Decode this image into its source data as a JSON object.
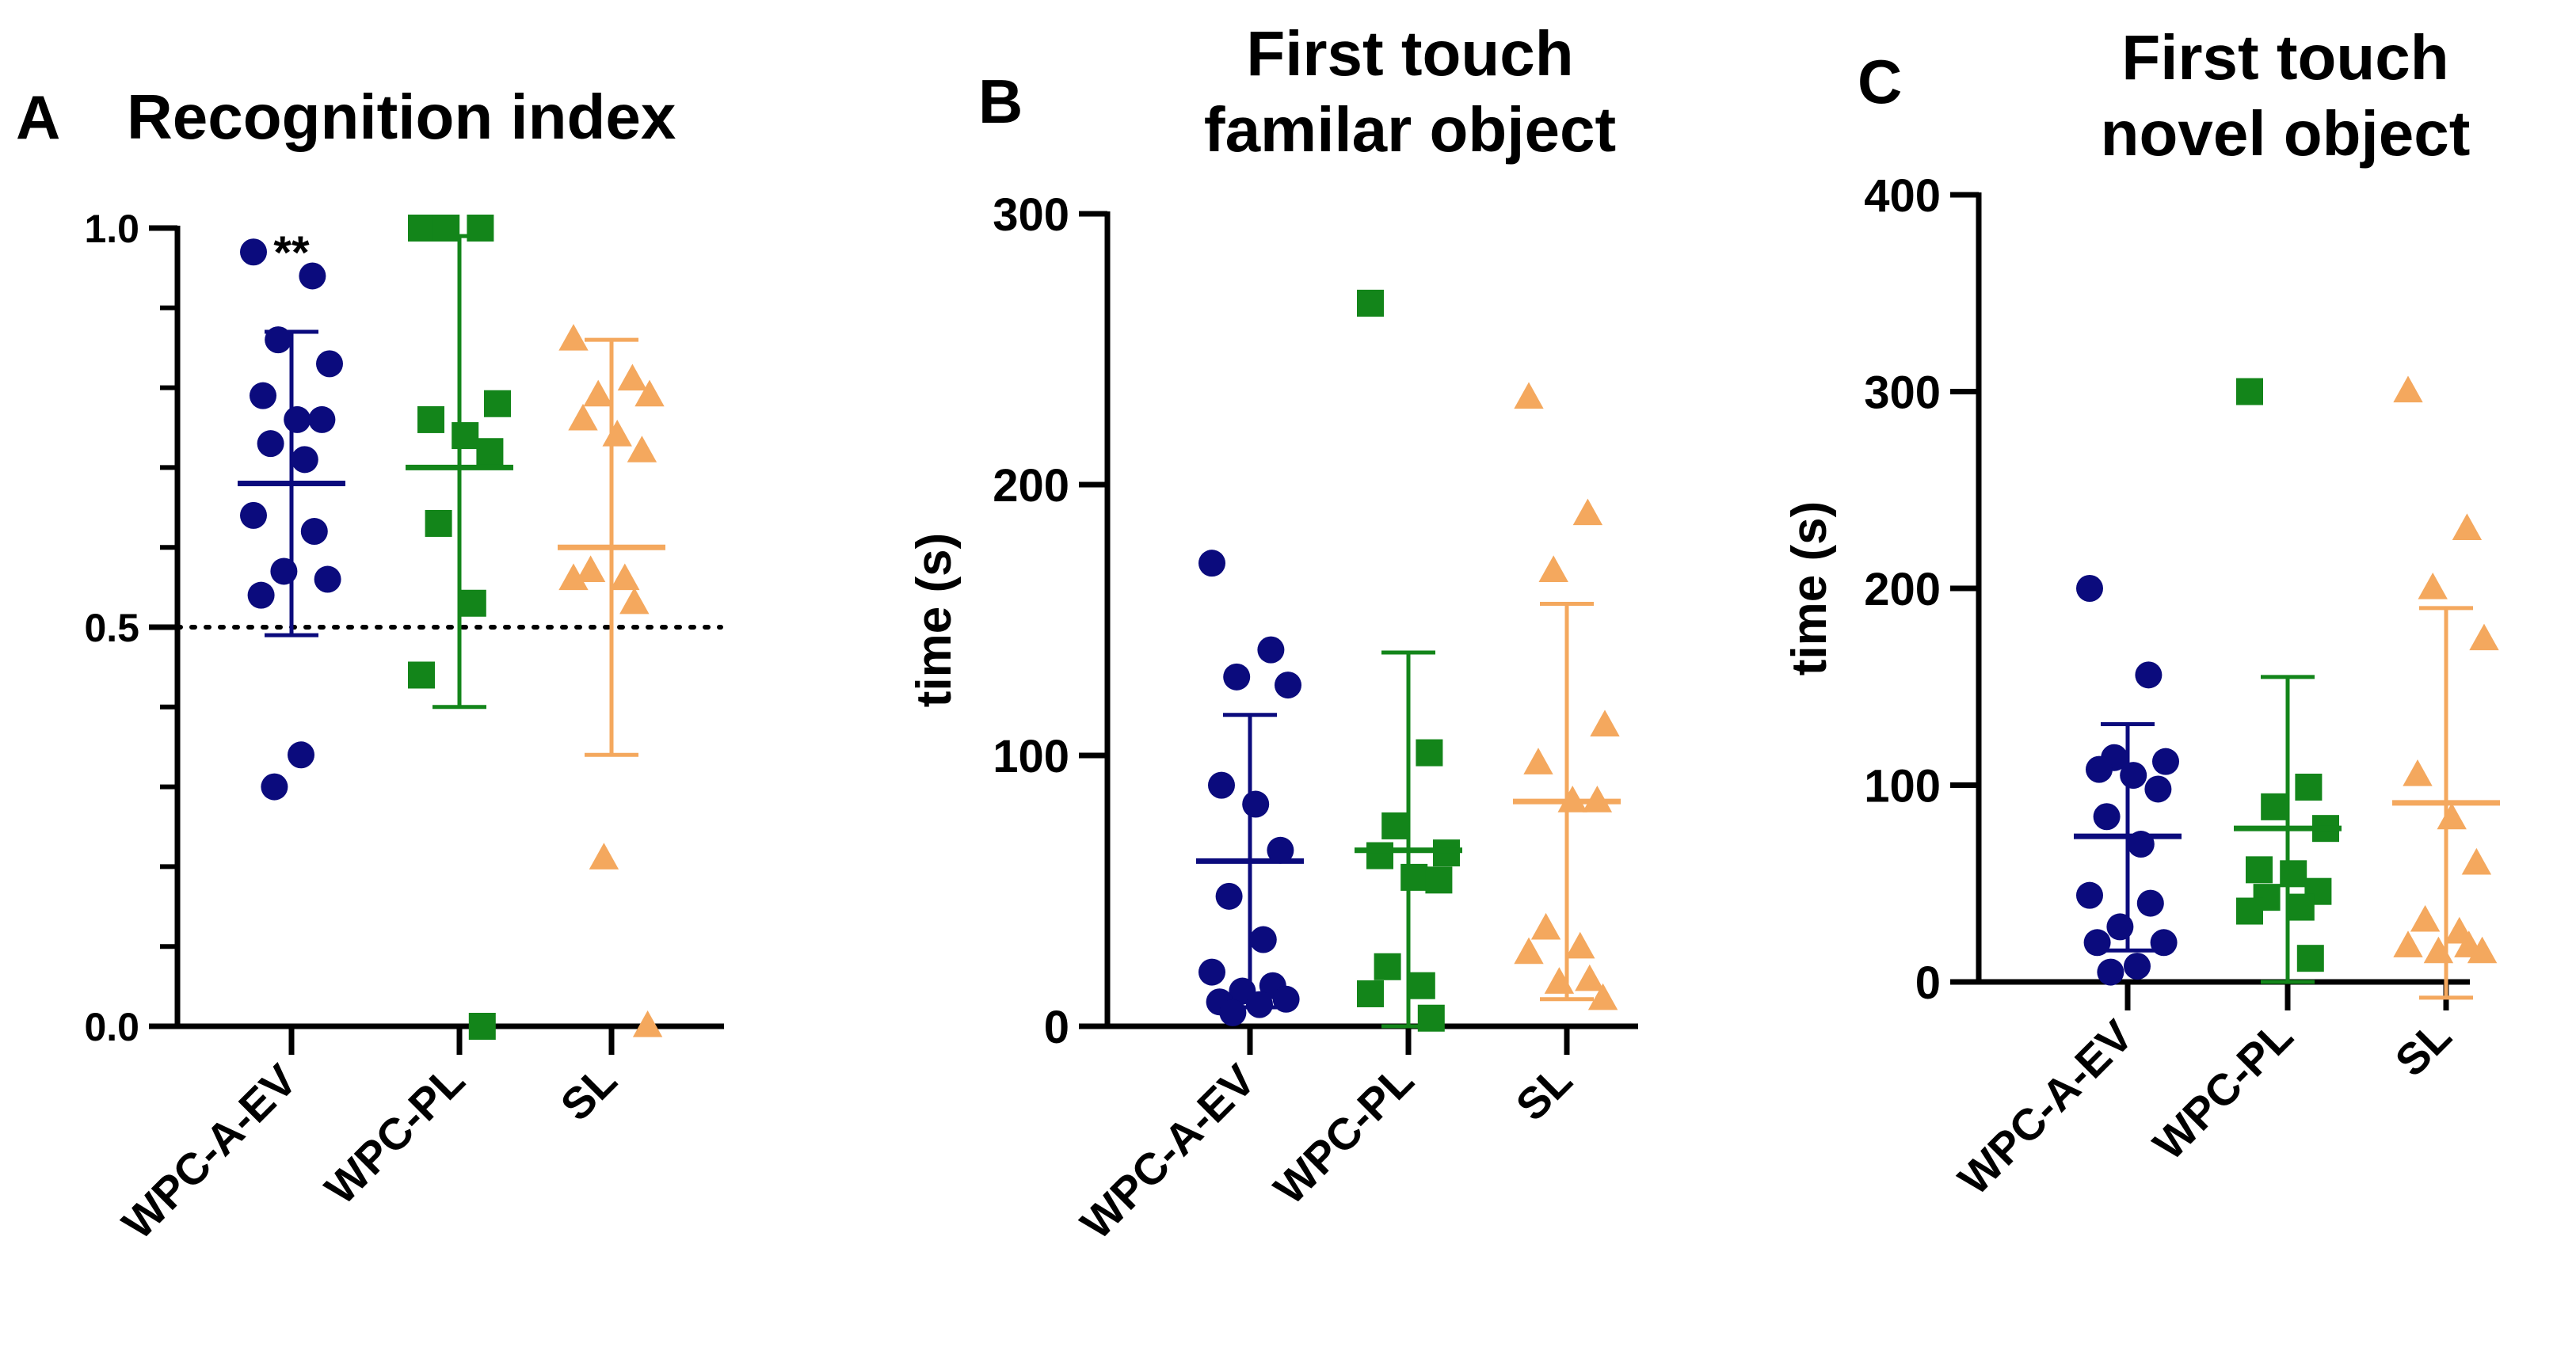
{
  "colors": {
    "WPC-A-EV": "#0b0b7d",
    "WPC-PL": "#13851a",
    "SL": "#f4a85e",
    "axis": "#000000"
  },
  "chart_data": [
    {
      "type": "scatter",
      "panel_letter": "A",
      "title_lines": [
        "Recognition index"
      ],
      "ylabel": "",
      "ylim": [
        0,
        1
      ],
      "ymajor_ticks": [
        0,
        0.5,
        1
      ],
      "ytick_labels": [
        "0.0",
        "0.5",
        "1.0"
      ],
      "yminor_step": 0.1,
      "reference_line": 0.5,
      "categories": [
        "WPC-A-EV",
        "WPC-PL",
        "SL"
      ],
      "significance": {
        "category": "WPC-A-EV",
        "label": "**"
      },
      "series": [
        {
          "name": "WPC-A-EV",
          "marker": "circle",
          "mean": 0.68,
          "sd_low": 0.49,
          "sd_high": 0.87,
          "values": [
            0.97,
            0.94,
            0.86,
            0.83,
            0.79,
            0.76,
            0.76,
            0.73,
            0.71,
            0.64,
            0.62,
            0.57,
            0.56,
            0.54,
            0.34,
            0.3
          ]
        },
        {
          "name": "WPC-PL",
          "marker": "square",
          "mean": 0.7,
          "sd_low": 0.4,
          "sd_high": 0.99,
          "values": [
            1.0,
            1.0,
            1.0,
            0.78,
            0.76,
            0.74,
            0.72,
            0.63,
            0.53,
            0.44,
            0.0
          ]
        },
        {
          "name": "SL",
          "marker": "triangle",
          "mean": 0.6,
          "sd_low": 0.34,
          "sd_high": 0.86,
          "values": [
            0.86,
            0.81,
            0.79,
            0.79,
            0.76,
            0.74,
            0.72,
            0.57,
            0.56,
            0.56,
            0.53,
            0.21,
            0.0
          ]
        }
      ]
    },
    {
      "type": "scatter",
      "panel_letter": "B",
      "title_lines": [
        "First touch",
        "familar object"
      ],
      "ylabel": "time (s)",
      "ylim": [
        0,
        300
      ],
      "ymajor_ticks": [
        0,
        100,
        200,
        300
      ],
      "ytick_labels": [
        "0",
        "100",
        "200",
        "300"
      ],
      "categories": [
        "WPC-A-EV",
        "WPC-PL",
        "SL"
      ],
      "series": [
        {
          "name": "WPC-A-EV",
          "marker": "circle",
          "mean": 61,
          "sd_low": 7,
          "sd_high": 115,
          "values": [
            171,
            139,
            129,
            126,
            89,
            82,
            65,
            48,
            32,
            20,
            15,
            13,
            10,
            9,
            8,
            5
          ]
        },
        {
          "name": "WPC-PL",
          "marker": "square",
          "mean": 65,
          "sd_low": 0,
          "sd_high": 138,
          "values": [
            267,
            101,
            74,
            64,
            63,
            55,
            54,
            22,
            15,
            12,
            3
          ]
        },
        {
          "name": "SL",
          "marker": "triangle",
          "mean": 83,
          "sd_low": 10,
          "sd_high": 156,
          "values": [
            232,
            189,
            168,
            111,
            97,
            83,
            83,
            36,
            29,
            27,
            17,
            16,
            10
          ]
        }
      ]
    },
    {
      "type": "scatter",
      "panel_letter": "C",
      "title_lines": [
        "First touch",
        "novel object"
      ],
      "ylabel": "time (s)",
      "ylim": [
        0,
        400
      ],
      "ymajor_ticks": [
        0,
        100,
        200,
        300,
        400
      ],
      "ytick_labels": [
        "0",
        "100",
        "200",
        "300",
        "400"
      ],
      "categories": [
        "WPC-A-EV",
        "WPC-PL",
        "SL"
      ],
      "series": [
        {
          "name": "WPC-A-EV",
          "marker": "circle",
          "mean": 74,
          "sd_low": 16,
          "sd_high": 131,
          "values": [
            200,
            156,
            114,
            112,
            108,
            105,
            98,
            84,
            70,
            44,
            40,
            28,
            20,
            20,
            8,
            5
          ]
        },
        {
          "name": "WPC-PL",
          "marker": "square",
          "mean": 78,
          "sd_low": 0,
          "sd_high": 155,
          "values": [
            300,
            99,
            89,
            78,
            57,
            55,
            46,
            43,
            38,
            36,
            12
          ]
        },
        {
          "name": "SL",
          "marker": "triangle",
          "mean": 91,
          "sd_low": -8,
          "sd_high": 190,
          "values": [
            300,
            230,
            200,
            174,
            105,
            83,
            60,
            31,
            25,
            18,
            18,
            15,
            15
          ]
        }
      ]
    }
  ]
}
